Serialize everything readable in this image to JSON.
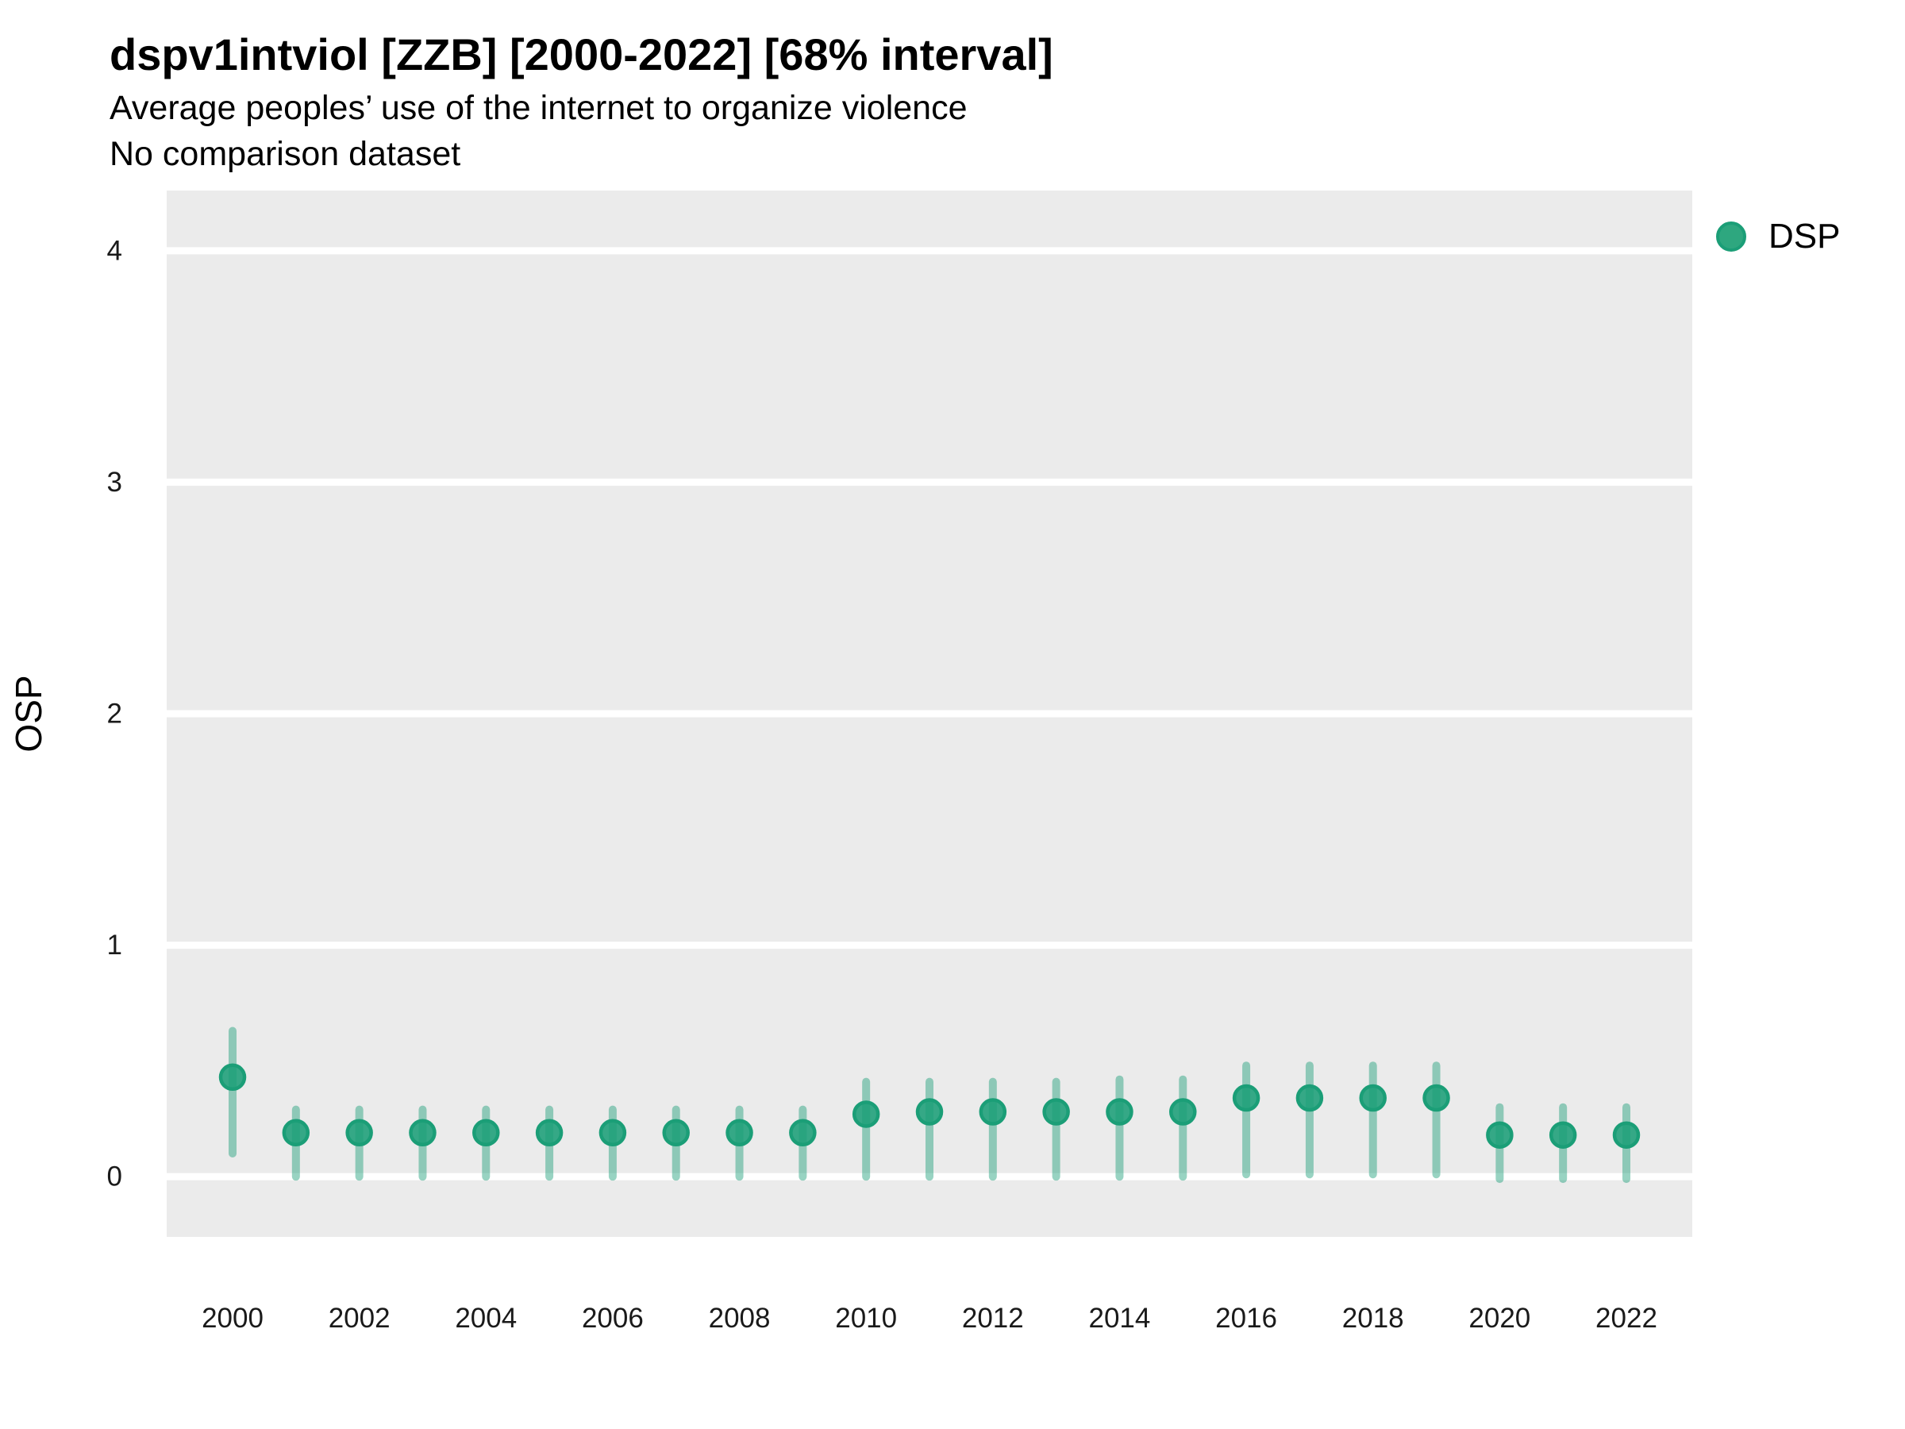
{
  "header": {
    "title": "dspv1intviol [ZZB] [2000-2022] [68% interval]",
    "subtitle_line1": "Average peoples’ use of the internet to organize violence",
    "subtitle_line2": "No comparison dataset"
  },
  "legend": {
    "label": "DSP"
  },
  "colors": {
    "point_stroke": "#1b9e77",
    "point_fill": "rgba(27,158,119,0.88)",
    "interval_line": "rgba(27,158,119,0.45)",
    "panel_background": "#ebebeb",
    "gridline": "#ffffff",
    "tick_text": "#1a1a1a",
    "text": "#000000"
  },
  "chart_data": {
    "type": "pointrange",
    "title": "dspv1intviol [ZZB] [2000-2022] [68% interval]",
    "subtitle": [
      "Average peoples’ use of the internet to organize violence",
      "No comparison dataset"
    ],
    "interval": "68%",
    "xlabel": "",
    "ylabel": "OSP",
    "legend_position": "right",
    "grid": "horizontal-major-only",
    "ylim": [
      -0.26,
      4.26
    ],
    "xlim": [
      1998.96,
      2023.04
    ],
    "y_ticks": [
      0,
      1,
      2,
      3,
      4
    ],
    "x_tick_labels": [
      2000,
      2002,
      2004,
      2006,
      2008,
      2010,
      2012,
      2014,
      2016,
      2018,
      2020,
      2022
    ],
    "x": [
      2000,
      2001,
      2002,
      2003,
      2004,
      2005,
      2006,
      2007,
      2008,
      2009,
      2010,
      2011,
      2012,
      2013,
      2014,
      2015,
      2016,
      2017,
      2018,
      2019,
      2020,
      2021,
      2022
    ],
    "series": [
      {
        "name": "DSP",
        "estimate": [
          0.43,
          0.19,
          0.19,
          0.19,
          0.19,
          0.19,
          0.19,
          0.19,
          0.19,
          0.19,
          0.27,
          0.28,
          0.28,
          0.28,
          0.28,
          0.28,
          0.34,
          0.34,
          0.34,
          0.34,
          0.18,
          0.18,
          0.18
        ],
        "lower": [
          0.1,
          0.0,
          0.0,
          0.0,
          0.0,
          0.0,
          0.0,
          0.0,
          0.0,
          0.0,
          0.0,
          0.0,
          0.0,
          0.0,
          0.0,
          0.0,
          0.01,
          0.01,
          0.01,
          0.01,
          -0.01,
          -0.01,
          -0.01
        ],
        "upper": [
          0.63,
          0.29,
          0.29,
          0.29,
          0.29,
          0.29,
          0.29,
          0.29,
          0.29,
          0.29,
          0.41,
          0.41,
          0.41,
          0.41,
          0.42,
          0.42,
          0.48,
          0.48,
          0.48,
          0.48,
          0.3,
          0.3,
          0.3
        ]
      }
    ]
  }
}
